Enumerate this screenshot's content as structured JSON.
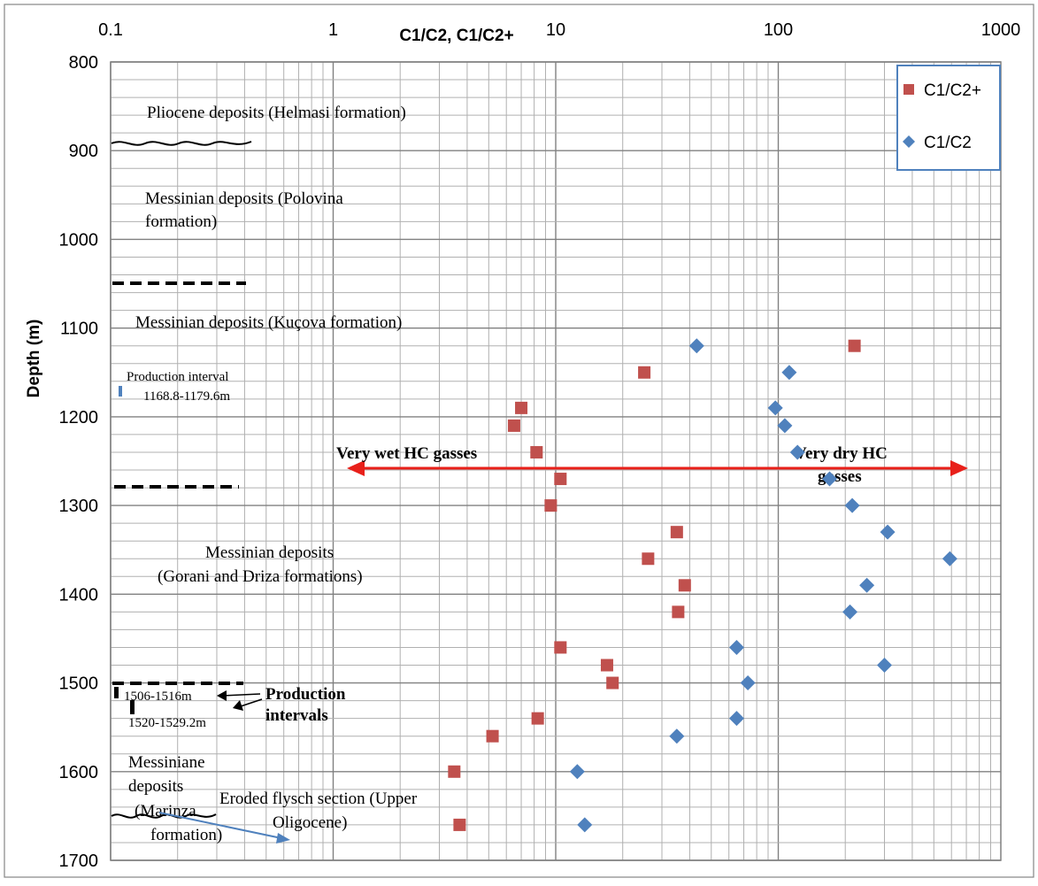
{
  "chart_data": {
    "type": "scatter",
    "title": "",
    "xlabel": "C1/C2, C1/C2+",
    "ylabel": "Depth (m)",
    "x_scale": "log",
    "xlim": [
      0.1,
      1000
    ],
    "ylim": [
      800,
      1700
    ],
    "y_inverted": true,
    "x_position": "top",
    "grid": true,
    "x_tick_labels": [
      "0.1",
      "1",
      "10",
      "100",
      "1000"
    ],
    "y_tick_labels": [
      "800",
      "900",
      "1000",
      "1100",
      "1200",
      "1300",
      "1400",
      "1500",
      "1600",
      "1700"
    ],
    "legend_position": "top-right",
    "series": [
      {
        "name": "C1/C2+",
        "marker": "square",
        "color": "#C0504D",
        "points": [
          {
            "x": 220,
            "y": 1120
          },
          {
            "x": 25,
            "y": 1150
          },
          {
            "x": 7,
            "y": 1190
          },
          {
            "x": 6.5,
            "y": 1210
          },
          {
            "x": 8.2,
            "y": 1240
          },
          {
            "x": 10.5,
            "y": 1270
          },
          {
            "x": 9.5,
            "y": 1300
          },
          {
            "x": 35,
            "y": 1330
          },
          {
            "x": 26,
            "y": 1360
          },
          {
            "x": 38,
            "y": 1390
          },
          {
            "x": 35.5,
            "y": 1420
          },
          {
            "x": 10.5,
            "y": 1460
          },
          {
            "x": 17,
            "y": 1480
          },
          {
            "x": 18,
            "y": 1500
          },
          {
            "x": 8.3,
            "y": 1540
          },
          {
            "x": 5.2,
            "y": 1560
          },
          {
            "x": 3.5,
            "y": 1600
          },
          {
            "x": 3.7,
            "y": 1660
          }
        ]
      },
      {
        "name": "C1/C2",
        "marker": "diamond",
        "color": "#4F81BD",
        "points": [
          {
            "x": 43,
            "y": 1120
          },
          {
            "x": 112,
            "y": 1150
          },
          {
            "x": 97,
            "y": 1190
          },
          {
            "x": 107,
            "y": 1210
          },
          {
            "x": 122,
            "y": 1240
          },
          {
            "x": 170,
            "y": 1270
          },
          {
            "x": 215,
            "y": 1300
          },
          {
            "x": 310,
            "y": 1330
          },
          {
            "x": 590,
            "y": 1360
          },
          {
            "x": 250,
            "y": 1390
          },
          {
            "x": 210,
            "y": 1420
          },
          {
            "x": 300,
            "y": 1480
          },
          {
            "x": 65,
            "y": 1460
          },
          {
            "x": 73,
            "y": 1500
          },
          {
            "x": 65,
            "y": 1540
          },
          {
            "x": 35,
            "y": 1560
          },
          {
            "x": 12.5,
            "y": 1600
          },
          {
            "x": 13.5,
            "y": 1660
          }
        ]
      }
    ],
    "annotations": {
      "pliocene": "Pliocene deposits (Helmasi  formation)",
      "polovina_1": "Messinian deposits (Polovina",
      "polovina_2": "formation)",
      "kucova": "Messinian  deposits (Kuçova formation)",
      "prod_interval_1": "Production interval",
      "prod_interval_1_range": "1168.8-1179.6m",
      "wet": "Very wet HC gasses",
      "dry_1": "Very dry HC",
      "dry_2": "gasses",
      "gorani_1": "Messinian  deposits",
      "gorani_2": "(Gorani and Driza  formations)",
      "range_a": "1506-1516m",
      "range_b": "1520-1529.2m",
      "prod_intervals_1": "Production",
      "prod_intervals_2": "intervals",
      "marinza_1": "Messiniane",
      "marinza_2": "deposits",
      "marinza_3": "(Marinza",
      "marinza_4": "formation)",
      "flysch_1": "Eroded flysch section (Upper",
      "flysch_2": "Oligocene)"
    },
    "colors": {
      "arrow_red": "#E8201A",
      "arrow_blue": "#4F81BD",
      "grid_major": "#808080",
      "grid_minor": "#b0b0b0"
    }
  }
}
